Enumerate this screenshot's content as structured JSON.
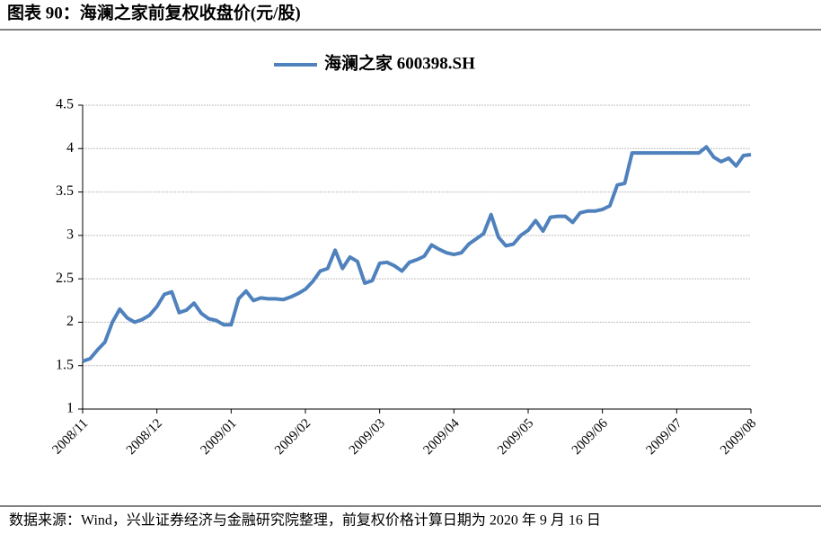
{
  "chart_data": {
    "type": "line",
    "title": "图表 90：海澜之家前复权收盘价(元/股)",
    "source": "数据来源：Wind，兴业证券经济与金融研究院整理，前复权价格计算日期为 2020 年 9 月 16 日",
    "categories": [
      "2008/11",
      null,
      null,
      null,
      null,
      null,
      null,
      null,
      null,
      null,
      "2008/12",
      null,
      null,
      null,
      null,
      null,
      null,
      null,
      null,
      null,
      "2009/01",
      null,
      null,
      null,
      null,
      null,
      null,
      null,
      null,
      null,
      "2009/02",
      null,
      null,
      null,
      null,
      null,
      null,
      null,
      null,
      null,
      "2009/03",
      null,
      null,
      null,
      null,
      null,
      null,
      null,
      null,
      null,
      "2009/04",
      null,
      null,
      null,
      null,
      null,
      null,
      null,
      null,
      null,
      "2009/05",
      null,
      null,
      null,
      null,
      null,
      null,
      null,
      null,
      null,
      "2009/06",
      null,
      null,
      null,
      null,
      null,
      null,
      null,
      null,
      null,
      "2009/07",
      null,
      null,
      null,
      null,
      null,
      null,
      null,
      null,
      null,
      "2009/08"
    ],
    "series": [
      {
        "name": "海澜之家  600398.SH",
        "color": "#4f81bd",
        "values": [
          1.55,
          1.58,
          1.68,
          1.77,
          2.0,
          2.15,
          2.05,
          2.0,
          2.03,
          2.08,
          2.18,
          2.32,
          2.35,
          2.11,
          2.14,
          2.22,
          2.1,
          2.04,
          2.02,
          1.97,
          1.97,
          2.27,
          2.36,
          2.25,
          2.28,
          2.27,
          2.27,
          2.26,
          2.29,
          2.33,
          2.38,
          2.47,
          2.59,
          2.62,
          2.83,
          2.62,
          2.75,
          2.7,
          2.45,
          2.48,
          2.68,
          2.69,
          2.65,
          2.59,
          2.69,
          2.72,
          2.76,
          2.89,
          2.84,
          2.8,
          2.78,
          2.8,
          2.9,
          2.96,
          3.02,
          3.24,
          2.98,
          2.88,
          2.9,
          3.0,
          3.06,
          3.17,
          3.05,
          3.21,
          3.22,
          3.22,
          3.15,
          3.26,
          3.28,
          3.28,
          3.3,
          3.34,
          3.58,
          3.6,
          3.95,
          3.95,
          3.95,
          3.95,
          3.95,
          3.95,
          3.95,
          3.95,
          3.95,
          3.95,
          4.02,
          3.9,
          3.85,
          3.89,
          3.8,
          3.92,
          3.93
        ]
      }
    ],
    "ylim": [
      1,
      4.5
    ],
    "yticks": [
      1,
      1.5,
      2,
      2.5,
      3,
      3.5,
      4,
      4.5
    ],
    "grid": true,
    "legend": "top"
  }
}
